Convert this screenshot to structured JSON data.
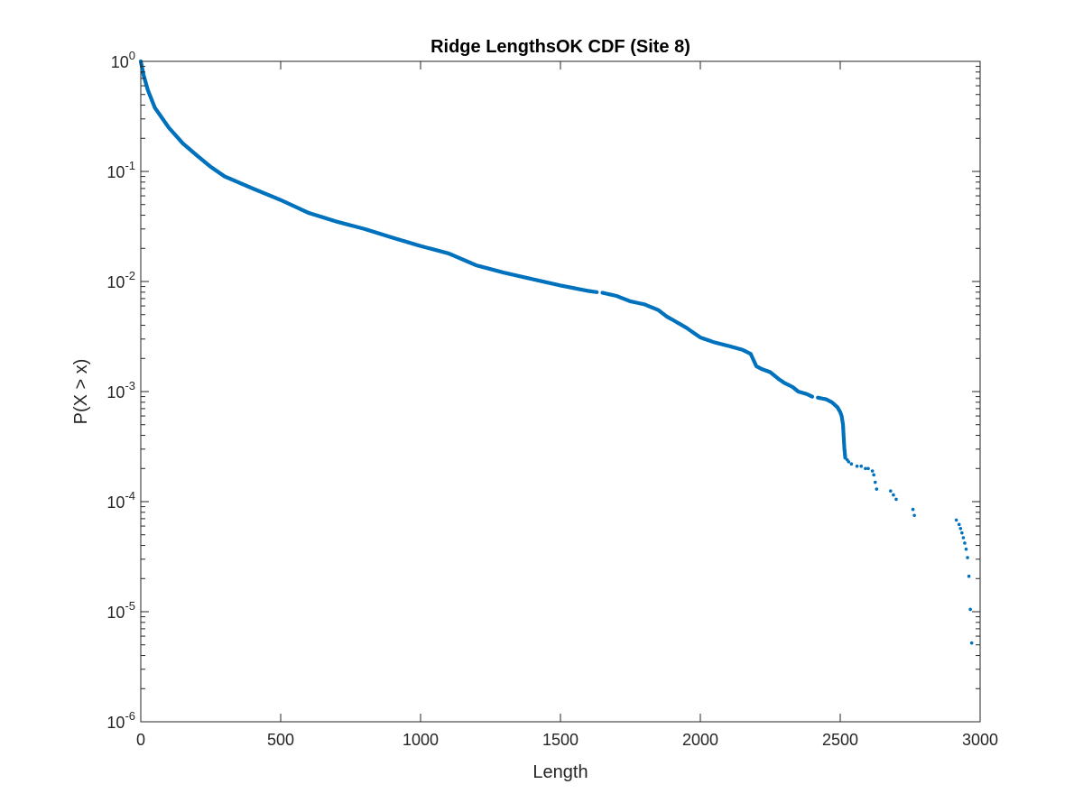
{
  "chart_data": {
    "type": "scatter",
    "title": "Ridge LengthsOK CDF (Site 8)",
    "xlabel": "Length",
    "ylabel": "P(X > x)",
    "xlim": [
      0,
      3000
    ],
    "ylim": [
      1e-06,
      1
    ],
    "yscale": "log",
    "grid": false,
    "legend": "none",
    "marker_color": "#0072BD",
    "x_ticks": [
      0,
      500,
      1000,
      1500,
      2000,
      2500,
      3000
    ],
    "x_tick_labels": [
      "0",
      "500",
      "1000",
      "1500",
      "2000",
      "2500",
      "3000"
    ],
    "y_ticks": [
      1,
      0.1,
      0.01,
      0.001,
      0.0001,
      1e-05,
      1e-06
    ],
    "y_tick_labels": [
      {
        "base": "10",
        "exp": "0"
      },
      {
        "base": "10",
        "exp": "-1"
      },
      {
        "base": "10",
        "exp": "-2"
      },
      {
        "base": "10",
        "exp": "-3"
      },
      {
        "base": "10",
        "exp": "-4"
      },
      {
        "base": "10",
        "exp": "-5"
      },
      {
        "base": "10",
        "exp": "-6"
      }
    ],
    "curve": {
      "x": [
        0,
        10,
        25,
        50,
        100,
        150,
        200,
        250,
        300,
        400,
        500,
        600,
        700,
        800,
        900,
        1000,
        1100,
        1200,
        1300,
        1400,
        1500,
        1600,
        1630
      ],
      "y": [
        1.0,
        0.75,
        0.55,
        0.38,
        0.25,
        0.18,
        0.14,
        0.11,
        0.09,
        0.07,
        0.055,
        0.042,
        0.035,
        0.03,
        0.025,
        0.021,
        0.018,
        0.014,
        0.012,
        0.0105,
        0.0092,
        0.0082,
        0.008
      ]
    },
    "curve2": {
      "x": [
        1650,
        1700,
        1750,
        1800,
        1850,
        1880,
        1900,
        1950,
        2000,
        2050,
        2100,
        2150,
        2180,
        2200,
        2220,
        2250,
        2280,
        2300,
        2330,
        2350,
        2380,
        2400
      ],
      "y": [
        0.0079,
        0.0074,
        0.0066,
        0.0062,
        0.0055,
        0.0048,
        0.0045,
        0.0038,
        0.0031,
        0.0028,
        0.0026,
        0.0024,
        0.0022,
        0.0017,
        0.0016,
        0.0015,
        0.0013,
        0.0012,
        0.0011,
        0.001,
        0.00095,
        0.0009
      ]
    },
    "curve3": {
      "x": [
        2420,
        2450,
        2470,
        2490,
        2500,
        2505,
        2510,
        2512,
        2515,
        2518
      ],
      "y": [
        0.00088,
        0.00085,
        0.0008,
        0.00072,
        0.00065,
        0.0006,
        0.0005,
        0.0004,
        0.0003,
        0.00025
      ]
    },
    "tail_points": {
      "x": [
        2525,
        2530,
        2540,
        2560,
        2575,
        2590,
        2600,
        2615,
        2620,
        2625,
        2630,
        2680,
        2690,
        2700,
        2760,
        2765,
        2915,
        2925,
        2930,
        2935,
        2940,
        2945,
        2950,
        2955,
        2960,
        2965,
        2970
      ],
      "y": [
        0.00024,
        0.00023,
        0.00022,
        0.00021,
        0.00021,
        0.0002,
        0.0002,
        0.00019,
        0.000175,
        0.00015,
        0.00013,
        0.000125,
        0.000115,
        0.000105,
        8.5e-05,
        7.5e-05,
        6.8e-05,
        6.2e-05,
        5.7e-05,
        5.2e-05,
        4.7e-05,
        4.2e-05,
        3.7e-05,
        3.1e-05,
        2.1e-05,
        1.05e-05,
        5.2e-06
      ]
    }
  }
}
